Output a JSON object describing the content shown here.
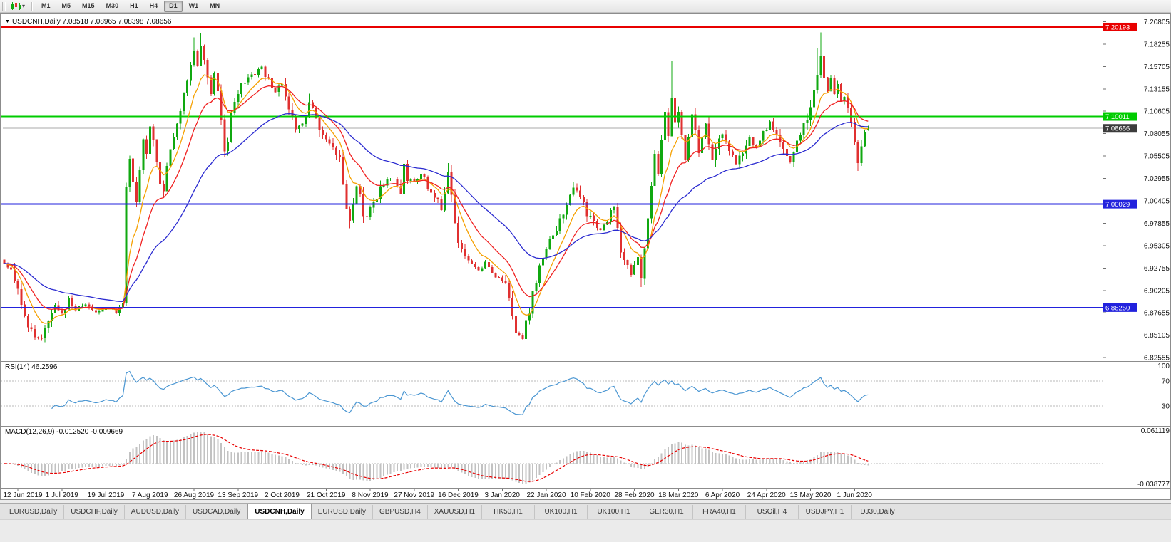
{
  "toolbar": {
    "timeframes": [
      "M1",
      "M5",
      "M15",
      "M30",
      "H1",
      "H4",
      "D1",
      "W1",
      "MN"
    ],
    "active_timeframe": "D1"
  },
  "window": {
    "title": "USDCNH,Daily 7.08518 7.08965 7.08398 7.08656",
    "caret_icon": "▼"
  },
  "rsi": {
    "label": "RSI(14) 46.2596",
    "scale_labels": [
      "100",
      "70",
      "30"
    ]
  },
  "macd": {
    "label": "MACD(12,26,9) -0.012520 -0.009669",
    "scale_top": "0.061119",
    "scale_bottom": "-0.038777"
  },
  "tabs": {
    "items": [
      "EURUSD,Daily",
      "USDCHF,Daily",
      "AUDUSD,Daily",
      "USDCAD,Daily",
      "USDCNH,Daily",
      "EURUSD,Daily",
      "GBPUSD,H4",
      "XAUUSD,H1",
      "HK50,H1",
      "UK100,H1",
      "UK100,H1",
      "GER30,H1",
      "FRA40,H1",
      "USOil,H4",
      "USDJPY,H1",
      "DJ30,Daily"
    ],
    "active_index": 4
  },
  "chart_data": {
    "type": "candlestick",
    "symbol": "USDCNH",
    "timeframe": "Daily",
    "current_ohlc": {
      "open": 7.08518,
      "high": 7.08965,
      "low": 7.08398,
      "close": 7.08656
    },
    "horizontal_lines": [
      {
        "price": 7.20193,
        "label": "7.20193",
        "color": "#E80000"
      },
      {
        "price": 7.10011,
        "label": "7.10011",
        "color": "#00CC00"
      },
      {
        "price": 7.00029,
        "label": "7.00029",
        "color": "#2222DD"
      },
      {
        "price": 6.8825,
        "label": "6.88250",
        "color": "#2222DD"
      }
    ],
    "current_price": {
      "value": 7.08656,
      "label": "7.08656",
      "badge_color": "#3C3C3C",
      "line_color": "#A8A8A8"
    },
    "y_axis": {
      "min": 6.8224,
      "max": 7.2165,
      "ticks": [
        7.20805,
        7.18255,
        7.15705,
        7.13155,
        7.10605,
        7.08055,
        7.05505,
        7.02955,
        7.00405,
        6.97855,
        6.95305,
        6.92755,
        6.90205,
        6.87655,
        6.85105,
        6.82555
      ]
    },
    "x_axis": {
      "labels": [
        "12 Jun 2019",
        "1 Jul 2019",
        "19 Jul 2019",
        "7 Aug 2019",
        "26 Aug 2019",
        "13 Sep 2019",
        "2 Oct 2019",
        "21 Oct 2019",
        "8 Nov 2019",
        "27 Nov 2019",
        "16 Dec 2019",
        "3 Jan 2020",
        "22 Jan 2020",
        "10 Feb 2020",
        "28 Feb 2020",
        "18 Mar 2020",
        "6 Apr 2020",
        "24 Apr 2020",
        "13 May 2020",
        "1 Jun 2020"
      ],
      "first_tick_index": 4,
      "tick_step": 13
    },
    "candles": {
      "count": 256,
      "up_color": "#10A810",
      "down_color": "#E03030",
      "max_high": 7.1958,
      "min_low": 6.843,
      "close_anchors": [
        [
          0,
          6.932
        ],
        [
          2,
          6.926
        ],
        [
          4,
          6.904
        ],
        [
          6,
          6.868
        ],
        [
          9,
          6.851
        ],
        [
          11,
          6.845
        ],
        [
          13,
          6.869
        ],
        [
          15,
          6.884
        ],
        [
          17,
          6.876
        ],
        [
          19,
          6.895
        ],
        [
          21,
          6.881
        ],
        [
          24,
          6.886
        ],
        [
          27,
          6.878
        ],
        [
          30,
          6.884
        ],
        [
          33,
          6.877
        ],
        [
          35,
          6.886
        ],
        [
          36,
          7.015
        ],
        [
          37,
          7.052
        ],
        [
          38,
          7.03
        ],
        [
          39,
          7.006
        ],
        [
          40,
          7.044
        ],
        [
          41,
          7.072
        ],
        [
          42,
          7.056
        ],
        [
          43,
          7.09
        ],
        [
          44,
          7.076
        ],
        [
          45,
          7.052
        ],
        [
          46,
          7.026
        ],
        [
          47,
          7.016
        ],
        [
          48,
          7.046
        ],
        [
          49,
          7.066
        ],
        [
          51,
          7.094
        ],
        [
          53,
          7.124
        ],
        [
          55,
          7.156
        ],
        [
          56,
          7.174
        ],
        [
          57,
          7.158
        ],
        [
          58,
          7.183
        ],
        [
          59,
          7.166
        ],
        [
          60,
          7.144
        ],
        [
          61,
          7.126
        ],
        [
          62,
          7.148
        ],
        [
          63,
          7.13
        ],
        [
          64,
          7.094
        ],
        [
          65,
          7.06
        ],
        [
          66,
          7.076
        ],
        [
          67,
          7.1
        ],
        [
          68,
          7.116
        ],
        [
          70,
          7.134
        ],
        [
          72,
          7.144
        ],
        [
          74,
          7.15
        ],
        [
          76,
          7.158
        ],
        [
          78,
          7.14
        ],
        [
          80,
          7.128
        ],
        [
          82,
          7.14
        ],
        [
          84,
          7.108
        ],
        [
          86,
          7.084
        ],
        [
          88,
          7.094
        ],
        [
          90,
          7.116
        ],
        [
          92,
          7.096
        ],
        [
          94,
          7.078
        ],
        [
          96,
          7.072
        ],
        [
          98,
          7.06
        ],
        [
          99,
          7.05
        ],
        [
          100,
          7.026
        ],
        [
          101,
          6.996
        ],
        [
          102,
          6.984
        ],
        [
          103,
          7.006
        ],
        [
          104,
          7.02
        ],
        [
          105,
          7.01
        ],
        [
          106,
          6.99
        ],
        [
          107,
          6.984
        ],
        [
          109,
          7.002
        ],
        [
          111,
          7.018
        ],
        [
          113,
          7.03
        ],
        [
          115,
          7.026
        ],
        [
          117,
          7.014
        ],
        [
          118,
          7.042
        ],
        [
          119,
          7.03
        ],
        [
          121,
          7.026
        ],
        [
          123,
          7.034
        ],
        [
          125,
          7.02
        ],
        [
          127,
          7.01
        ],
        [
          129,
          6.996
        ],
        [
          130,
          7.012
        ],
        [
          131,
          7.038
        ],
        [
          132,
          7.008
        ],
        [
          133,
          6.974
        ],
        [
          134,
          6.956
        ],
        [
          136,
          6.94
        ],
        [
          138,
          6.93
        ],
        [
          140,
          6.926
        ],
        [
          142,
          6.934
        ],
        [
          144,
          6.92
        ],
        [
          146,
          6.916
        ],
        [
          148,
          6.912
        ],
        [
          150,
          6.878
        ],
        [
          151,
          6.856
        ],
        [
          153,
          6.85
        ],
        [
          155,
          6.876
        ],
        [
          156,
          6.902
        ],
        [
          158,
          6.928
        ],
        [
          160,
          6.95
        ],
        [
          162,
          6.966
        ],
        [
          164,
          6.984
        ],
        [
          166,
          7.002
        ],
        [
          168,
          7.02
        ],
        [
          170,
          7.006
        ],
        [
          172,
          6.99
        ],
        [
          174,
          6.98
        ],
        [
          176,
          6.97
        ],
        [
          178,
          6.984
        ],
        [
          180,
          6.996
        ],
        [
          181,
          6.976
        ],
        [
          182,
          6.95
        ],
        [
          184,
          6.932
        ],
        [
          185,
          6.92
        ],
        [
          186,
          6.928
        ],
        [
          187,
          6.944
        ],
        [
          188,
          6.916
        ],
        [
          189,
          6.95
        ],
        [
          190,
          6.986
        ],
        [
          191,
          7.02
        ],
        [
          192,
          7.056
        ],
        [
          193,
          7.032
        ],
        [
          194,
          7.07
        ],
        [
          195,
          7.102
        ],
        [
          196,
          7.082
        ],
        [
          197,
          7.118
        ],
        [
          198,
          7.092
        ],
        [
          199,
          7.11
        ],
        [
          200,
          7.076
        ],
        [
          201,
          7.052
        ],
        [
          202,
          7.08
        ],
        [
          203,
          7.102
        ],
        [
          204,
          7.086
        ],
        [
          205,
          7.06
        ],
        [
          206,
          7.074
        ],
        [
          207,
          7.09
        ],
        [
          208,
          7.066
        ],
        [
          209,
          7.05
        ],
        [
          210,
          7.066
        ],
        [
          212,
          7.08
        ],
        [
          214,
          7.062
        ],
        [
          216,
          7.046
        ],
        [
          218,
          7.06
        ],
        [
          220,
          7.076
        ],
        [
          222,
          7.066
        ],
        [
          224,
          7.08
        ],
        [
          226,
          7.094
        ],
        [
          228,
          7.08
        ],
        [
          230,
          7.064
        ],
        [
          232,
          7.05
        ],
        [
          234,
          7.07
        ],
        [
          236,
          7.09
        ],
        [
          238,
          7.112
        ],
        [
          239,
          7.13
        ],
        [
          240,
          7.15
        ],
        [
          241,
          7.17
        ],
        [
          242,
          7.146
        ],
        [
          243,
          7.13
        ],
        [
          244,
          7.144
        ],
        [
          245,
          7.126
        ],
        [
          246,
          7.134
        ],
        [
          247,
          7.116
        ],
        [
          248,
          7.124
        ],
        [
          249,
          7.106
        ],
        [
          250,
          7.09
        ],
        [
          251,
          7.066
        ],
        [
          252,
          7.046
        ],
        [
          253,
          7.07
        ],
        [
          254,
          7.083
        ],
        [
          255,
          7.08656
        ]
      ],
      "wick_highs": [
        [
          43,
          7.108
        ],
        [
          56,
          7.19
        ],
        [
          58,
          7.1955
        ],
        [
          90,
          7.126
        ],
        [
          118,
          7.066
        ],
        [
          131,
          7.047
        ],
        [
          168,
          7.026
        ],
        [
          195,
          7.135
        ],
        [
          197,
          7.163
        ],
        [
          240,
          7.178
        ],
        [
          241,
          7.1958
        ]
      ],
      "wick_lows": [
        [
          9,
          6.846
        ],
        [
          11,
          6.8445
        ],
        [
          102,
          6.973
        ],
        [
          151,
          6.8435
        ],
        [
          153,
          6.8455
        ],
        [
          188,
          6.906
        ],
        [
          252,
          7.038
        ]
      ]
    },
    "moving_averages": [
      {
        "name": "fast",
        "type": "ema",
        "period": 8,
        "color": "#F5A000"
      },
      {
        "name": "medium",
        "type": "ema",
        "period": 16,
        "color": "#F02020"
      },
      {
        "name": "slow",
        "type": "ema",
        "period": 40,
        "color": "#2A2AD0"
      }
    ],
    "rsi": {
      "period": 14,
      "current": 46.2596,
      "color": "#4A96D2",
      "levels": [
        70,
        30
      ],
      "scale_max": 100,
      "scale_min": 0
    },
    "macd": {
      "fast": 12,
      "slow": 26,
      "signal": 9,
      "main_current": -0.01252,
      "signal_current": -0.009669,
      "scale_max": 0.061119,
      "scale_min": -0.038777,
      "histogram_color": "#C2C2C2",
      "signal_color": "#E80000"
    }
  }
}
